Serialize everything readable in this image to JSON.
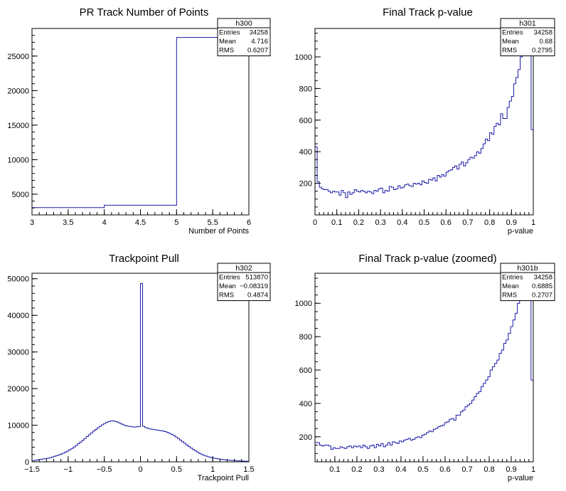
{
  "chart_data": [
    {
      "type": "histogram",
      "title": "PR Track Number of Points",
      "xlabel": "Number of Points",
      "ylabel": "",
      "xlim": [
        3,
        6
      ],
      "ylim": [
        2000,
        29000
      ],
      "x_ticks": [
        "3",
        "3.5",
        "4",
        "4.5",
        "5",
        "5.5",
        "6"
      ],
      "y_ticks": [
        "5000",
        "10000",
        "15000",
        "20000",
        "25000"
      ],
      "bin_edges": [
        3,
        4,
        5,
        6
      ],
      "values": [
        3050,
        3400,
        27700
      ],
      "stats": {
        "name": "h300",
        "rows": [
          [
            "Entries",
            "34258"
          ],
          [
            "Mean",
            "4.716"
          ],
          [
            "RMS",
            "0.6207"
          ]
        ]
      }
    },
    {
      "type": "histogram",
      "title": "Final Track p-value",
      "xlabel": "p-value",
      "ylabel": "",
      "xlim": [
        0,
        1
      ],
      "ylim": [
        0,
        1180
      ],
      "x_ticks": [
        "0",
        "0.1",
        "0.2",
        "0.3",
        "0.4",
        "0.5",
        "0.6",
        "0.7",
        "0.8",
        "0.9",
        "1"
      ],
      "y_ticks": [
        "200",
        "400",
        "600",
        "800",
        "1000"
      ],
      "bin_edges_range": [
        0,
        1
      ],
      "values": [
        430,
        210,
        175,
        165,
        160,
        160,
        150,
        140,
        150,
        145,
        145,
        125,
        155,
        140,
        110,
        145,
        130,
        140,
        160,
        150,
        145,
        155,
        150,
        140,
        150,
        145,
        135,
        155,
        150,
        165,
        170,
        140,
        155,
        150,
        180,
        175,
        160,
        165,
        185,
        170,
        175,
        190,
        195,
        185,
        180,
        200,
        195,
        200,
        190,
        215,
        205,
        200,
        225,
        220,
        235,
        215,
        250,
        240,
        255,
        245,
        270,
        280,
        285,
        300,
        310,
        290,
        320,
        335,
        310,
        330,
        350,
        365,
        360,
        375,
        400,
        390,
        420,
        450,
        480,
        470,
        520,
        510,
        560,
        580,
        570,
        640,
        610,
        610,
        680,
        720,
        750,
        830,
        870,
        920,
        1000,
        1020,
        1090,
        1140,
        1180,
        540
      ],
      "stats": {
        "name": "h301",
        "rows": [
          [
            "Entries",
            "34258"
          ],
          [
            "Mean",
            "0.68"
          ],
          [
            "RMS",
            "0.2795"
          ]
        ]
      }
    },
    {
      "type": "histogram",
      "title": "Trackpoint Pull",
      "xlabel": "Trackpoint Pull",
      "ylabel": "",
      "xlim": [
        -1.5,
        1.5
      ],
      "ylim": [
        0,
        51500
      ],
      "x_ticks": [
        "−1.5",
        "−1",
        "−0.5",
        "0",
        "0.5",
        "1",
        "1.5"
      ],
      "y_ticks": [
        "0",
        "10000",
        "20000",
        "30000",
        "40000",
        "50000"
      ],
      "bin_edges_range": [
        -1.5,
        1.5
      ],
      "values": [
        300,
        400,
        500,
        600,
        700,
        800,
        900,
        1000,
        1150,
        1300,
        1500,
        1700,
        1900,
        2100,
        2350,
        2650,
        2950,
        3300,
        3650,
        4050,
        4500,
        4950,
        5400,
        5900,
        6400,
        6900,
        7400,
        7900,
        8400,
        8850,
        9300,
        9700,
        10100,
        10450,
        10750,
        11000,
        11150,
        11200,
        11050,
        10850,
        10600,
        10300,
        10050,
        9850,
        9750,
        9650,
        9550,
        9500,
        9600,
        9650,
        48700,
        9700,
        9350,
        9150,
        9000,
        8900,
        8800,
        8700,
        8600,
        8500,
        8400,
        8250,
        8050,
        7800,
        7500,
        7200,
        6800,
        6400,
        5950,
        5500,
        5050,
        4600,
        4150,
        3750,
        3350,
        3000,
        2650,
        2300,
        2000,
        1750,
        1550,
        1350,
        1200,
        1050,
        950,
        850,
        750,
        650,
        580,
        520,
        470,
        420,
        380,
        340,
        300,
        260,
        230,
        200,
        180,
        160
      ],
      "stats": {
        "name": "h302",
        "rows": [
          [
            "Entries",
            "513870"
          ],
          [
            "Mean",
            "−0.08319"
          ],
          [
            "RMS",
            "0.4874"
          ]
        ]
      }
    },
    {
      "type": "histogram",
      "title": "Final Track p-value (zoomed)",
      "xlabel": "p-value",
      "ylabel": "",
      "xlim": [
        0.01,
        1
      ],
      "ylim": [
        50,
        1180
      ],
      "x_ticks": [
        "0.1",
        "0.2",
        "0.3",
        "0.4",
        "0.5",
        "0.6",
        "0.7",
        "0.8",
        "0.9",
        "1"
      ],
      "y_ticks": [
        "200",
        "400",
        "600",
        "800",
        "1000"
      ],
      "bin_edges_range": [
        0.01,
        1
      ],
      "values": [
        165,
        165,
        150,
        145,
        150,
        150,
        145,
        125,
        135,
        130,
        130,
        140,
        135,
        130,
        140,
        145,
        135,
        145,
        140,
        145,
        135,
        150,
        140,
        130,
        145,
        150,
        135,
        155,
        145,
        160,
        140,
        150,
        165,
        150,
        170,
        165,
        160,
        175,
        170,
        180,
        185,
        190,
        180,
        185,
        195,
        200,
        195,
        210,
        215,
        225,
        235,
        230,
        245,
        250,
        260,
        265,
        270,
        285,
        290,
        305,
        310,
        300,
        330,
        330,
        350,
        360,
        380,
        390,
        400,
        420,
        440,
        460,
        470,
        500,
        520,
        540,
        560,
        600,
        620,
        640,
        660,
        700,
        720,
        760,
        780,
        820,
        860,
        900,
        940,
        1000,
        1040,
        1090,
        1140,
        1180,
        1020,
        540
      ],
      "stats": {
        "name": "h301b",
        "rows": [
          [
            "Entries",
            "34258"
          ],
          [
            "Mean",
            "0.6885"
          ],
          [
            "RMS",
            "0.2707"
          ]
        ]
      }
    }
  ]
}
